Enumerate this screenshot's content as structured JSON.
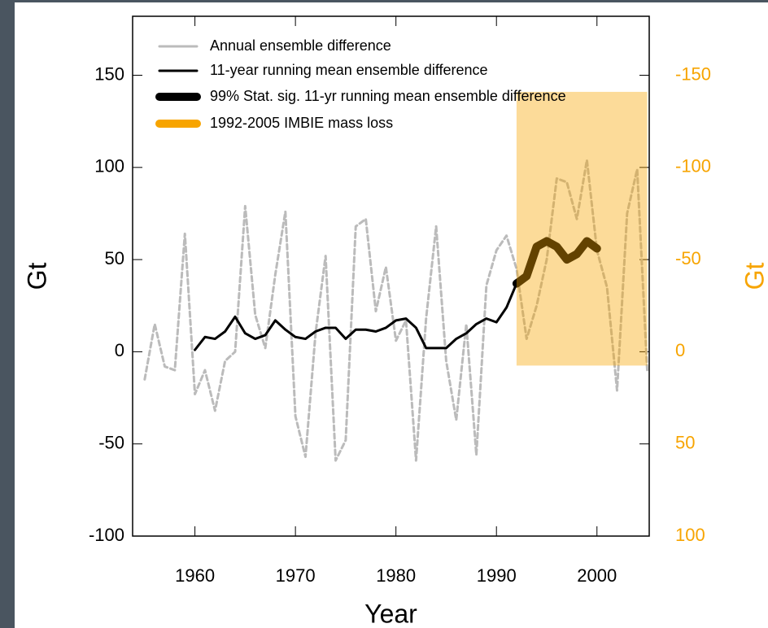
{
  "chart_data": {
    "type": "line",
    "x_label": "Year",
    "y_label": "Gt",
    "y2_label": "Gt",
    "x": [
      1955,
      1956,
      1957,
      1958,
      1959,
      1960,
      1961,
      1962,
      1963,
      1964,
      1965,
      1966,
      1967,
      1968,
      1969,
      1970,
      1971,
      1972,
      1973,
      1974,
      1975,
      1976,
      1977,
      1978,
      1979,
      1980,
      1981,
      1982,
      1983,
      1984,
      1985,
      1986,
      1987,
      1988,
      1989,
      1990,
      1991,
      1992,
      1993,
      1994,
      1995,
      1996,
      1997,
      1998,
      1999,
      2000,
      2001,
      2002,
      2003,
      2004,
      2005
    ],
    "series": [
      {
        "name": "Annual ensemble difference",
        "color": "#bbbbbb",
        "style": "dashed",
        "values": [
          -15,
          15,
          -8,
          -10,
          64,
          -23,
          -10,
          -32,
          -5,
          0,
          79,
          20,
          2,
          42,
          76,
          -35,
          -57,
          10,
          52,
          -59,
          -48,
          68,
          72,
          22,
          46,
          6,
          17,
          -59,
          18,
          68,
          -5,
          -37,
          15,
          -56,
          36,
          55,
          63,
          45,
          7,
          25,
          50,
          94,
          92,
          72,
          104,
          55,
          35,
          -21,
          75,
          99,
          -10
        ]
      },
      {
        "name": "11-year running mean ensemble difference",
        "color": "#000000",
        "style": "thin",
        "values": [
          null,
          null,
          null,
          null,
          null,
          1,
          8,
          7,
          11,
          19,
          10,
          7,
          9,
          17,
          12,
          8,
          7,
          11,
          13,
          13,
          7,
          12,
          12,
          11,
          13,
          17,
          18,
          13,
          2,
          2,
          2,
          7,
          10,
          15,
          18,
          16,
          24,
          37,
          41,
          57,
          60,
          57,
          50,
          53,
          60,
          56,
          null,
          null,
          null,
          null,
          null
        ]
      },
      {
        "name": "99% Stat. sig. 11-yr running mean ensemble difference",
        "color": "#000000",
        "style": "thick",
        "values": [
          null,
          null,
          null,
          null,
          null,
          null,
          null,
          null,
          null,
          null,
          null,
          null,
          null,
          null,
          null,
          null,
          null,
          null,
          null,
          null,
          null,
          null,
          null,
          null,
          null,
          null,
          null,
          null,
          null,
          null,
          null,
          null,
          null,
          null,
          null,
          null,
          null,
          37,
          41,
          57,
          60,
          57,
          50,
          53,
          60,
          56,
          null,
          null,
          null,
          null,
          null
        ]
      }
    ],
    "shade": {
      "name": "1992-2005 IMBIE mass loss",
      "color": "#f7a400",
      "x": [
        1992,
        2005
      ],
      "y2": [
        -141,
        7.5
      ],
      "axis": "y2"
    },
    "xlim": [
      1953.8,
      2005.2
    ],
    "xticks": [
      1960,
      1970,
      1980,
      1990,
      2000
    ],
    "ylim": [
      -100,
      182
    ],
    "yticks": [
      -100,
      -50,
      0,
      50,
      100,
      150
    ],
    "y2lim": [
      100,
      -182
    ],
    "y2ticks": [
      100,
      50,
      0,
      -50,
      -100,
      -150
    ],
    "y2color": "#f7a400"
  }
}
